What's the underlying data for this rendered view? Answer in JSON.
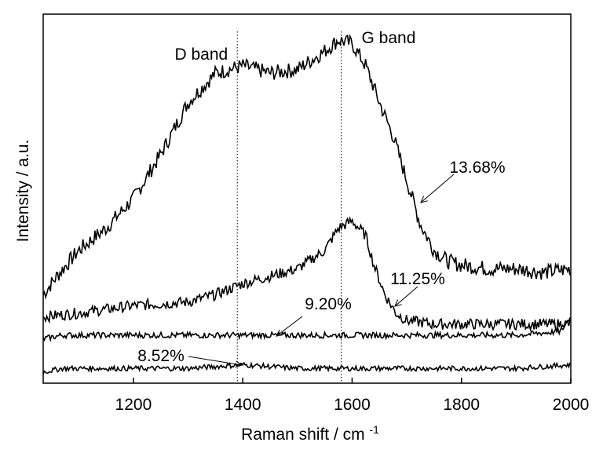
{
  "chart_data": {
    "type": "line",
    "title": "",
    "xlabel": "Raman shift / cm",
    "xlabel_superscript": "-1",
    "ylabel": "Intensity / a.u.",
    "xlim": [
      1035,
      2000
    ],
    "ylim": [
      0,
      100
    ],
    "xticks": [
      1200,
      1400,
      1600,
      1800,
      2000
    ],
    "grid": false,
    "legend": "none",
    "line_color": "#000000",
    "band_markers": [
      {
        "label": "D band",
        "x": 1390
      },
      {
        "label": "G band",
        "x": 1580
      }
    ],
    "series": [
      {
        "name": "13.68%",
        "x": [
          1035,
          1060,
          1100,
          1150,
          1200,
          1250,
          1300,
          1350,
          1400,
          1450,
          1500,
          1550,
          1575,
          1600,
          1625,
          1650,
          1675,
          1700,
          1725,
          1750,
          1775,
          1800,
          1850,
          1900,
          1950,
          2000
        ],
        "y": [
          24,
          29,
          36,
          42,
          50,
          62,
          76,
          84,
          86,
          84,
          85,
          90,
          93,
          92,
          86,
          76,
          67,
          55,
          43,
          36,
          33,
          32,
          31,
          31,
          30,
          31
        ]
      },
      {
        "name": "11.25%",
        "x": [
          1035,
          1100,
          1200,
          1300,
          1350,
          1400,
          1450,
          1500,
          1550,
          1575,
          1600,
          1625,
          1640,
          1660,
          1680,
          1700,
          1750,
          1800,
          1900,
          2000
        ],
        "y": [
          18,
          19,
          21,
          22,
          24,
          27,
          29,
          31,
          36,
          42,
          44,
          40,
          32,
          24,
          19,
          17,
          16,
          16,
          16,
          16
        ]
      },
      {
        "name": "9.20%",
        "x": [
          1035,
          1070,
          1200,
          1300,
          1400,
          1500,
          1600,
          1700,
          1800,
          1900,
          1980,
          2000
        ],
        "y": [
          12,
          13,
          13,
          13,
          13,
          13,
          13,
          13,
          13,
          13,
          14,
          18
        ]
      },
      {
        "name": "8.52%",
        "x": [
          1035,
          1070,
          1200,
          1300,
          1400,
          1500,
          1600,
          1700,
          1800,
          1900,
          2000
        ],
        "y": [
          3,
          4,
          4,
          4,
          5,
          4,
          4,
          4,
          4,
          4,
          5
        ]
      }
    ],
    "annotations": [
      {
        "text": "13.68%",
        "x": 1700,
        "y": 53
      },
      {
        "text": "11.25%",
        "x": 1650,
        "y": 18
      },
      {
        "text": "9.20%",
        "x": 1455,
        "y": 12
      },
      {
        "text": "8.52%",
        "x": 1400,
        "y": 5
      }
    ]
  }
}
